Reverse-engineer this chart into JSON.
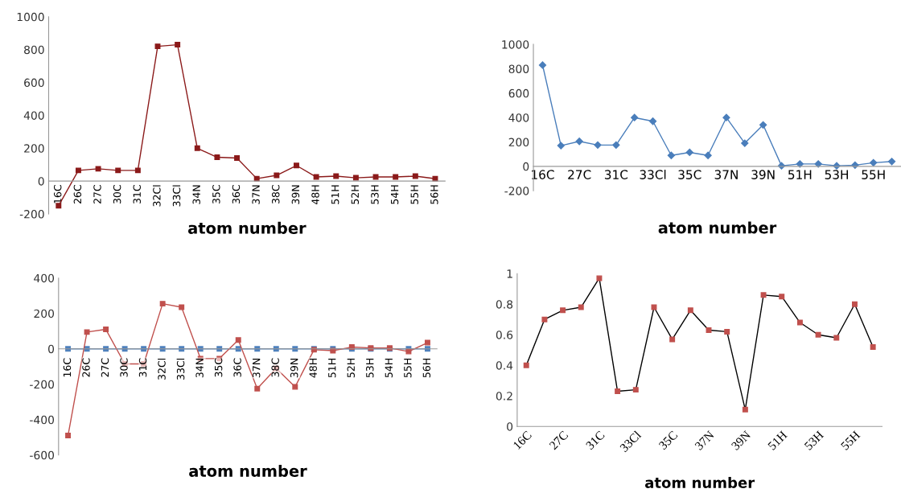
{
  "chart_data": [
    {
      "type": "line",
      "xlabel": "atom number",
      "categories": [
        "16C",
        "26C",
        "27C",
        "30C",
        "31C",
        "32Cl",
        "33Cl",
        "34N",
        "35C",
        "36C",
        "37N",
        "38C",
        "39N",
        "48H",
        "51H",
        "52H",
        "53H",
        "54H",
        "55H",
        "56H"
      ],
      "series": [
        {
          "color": "#8b1a1a",
          "values": [
            -150,
            65,
            75,
            65,
            65,
            820,
            830,
            200,
            145,
            140,
            15,
            35,
            95,
            25,
            30,
            20,
            25,
            25,
            30,
            15
          ]
        }
      ],
      "ylim": [
        -200,
        1000
      ],
      "yticks": [
        -200,
        0,
        200,
        400,
        600,
        800,
        1000
      ],
      "marker": "square",
      "grid": false
    },
    {
      "type": "line",
      "xlabel": "atom number",
      "categories": [
        "16C",
        null,
        "27C",
        null,
        "31C",
        null,
        "33Cl",
        null,
        "35C",
        null,
        "37N",
        null,
        "39N",
        null,
        "51H",
        null,
        "53H",
        null,
        "55H",
        null
      ],
      "series": [
        {
          "color": "#4a7ebb",
          "values": [
            830,
            170,
            205,
            175,
            175,
            400,
            370,
            90,
            115,
            90,
            400,
            190,
            340,
            5,
            20,
            20,
            5,
            10,
            30,
            40
          ]
        }
      ],
      "ylim": [
        -200,
        1000
      ],
      "yticks": [
        -200,
        0,
        200,
        400,
        600,
        800,
        1000
      ],
      "marker": "diamond",
      "grid": false
    },
    {
      "type": "line",
      "xlabel": "atom number",
      "categories": [
        "16C",
        "26C",
        "27C",
        "30C",
        "31C",
        "32Cl",
        "33Cl",
        "34N",
        "35C",
        "36C",
        "37N",
        "38C",
        "39N",
        "48H",
        "51H",
        "52H",
        "53H",
        "54H",
        "55H",
        "56H"
      ],
      "series": [
        {
          "color": "#4f81bd",
          "values": [
            0,
            0,
            0,
            0,
            0,
            0,
            0,
            0,
            0,
            0,
            0,
            0,
            0,
            0,
            0,
            0,
            0,
            0,
            0,
            0
          ]
        },
        {
          "color": "#c0504d",
          "values": [
            -490,
            95,
            110,
            -85,
            -85,
            255,
            235,
            -55,
            -55,
            50,
            -225,
            -110,
            -215,
            -5,
            -10,
            10,
            5,
            5,
            -15,
            35
          ]
        }
      ],
      "ylim": [
        -600,
        400
      ],
      "yticks": [
        -600,
        -400,
        -200,
        0,
        200,
        400
      ],
      "marker": "square",
      "grid": false
    },
    {
      "type": "line",
      "xlabel": "atom number",
      "categories": [
        "16C",
        null,
        "27C",
        null,
        "31C",
        null,
        "33Cl",
        null,
        "35C",
        null,
        "37N",
        null,
        "39N",
        null,
        "51H",
        null,
        "53H",
        null,
        "55H",
        null
      ],
      "series": [
        {
          "color": "#c0504d",
          "values": [
            0.4,
            0.7,
            0.76,
            0.78,
            0.97,
            0.23,
            0.24,
            0.78,
            0.57,
            0.76,
            0.63,
            0.62,
            0.11,
            0.86,
            0.85,
            0.68,
            0.6,
            0.58,
            0.8,
            0.52
          ]
        }
      ],
      "ylim": [
        0,
        1
      ],
      "yticks": [
        0,
        0.2,
        0.4,
        0.6,
        0.8,
        1
      ],
      "marker": "square",
      "grid": false
    }
  ]
}
